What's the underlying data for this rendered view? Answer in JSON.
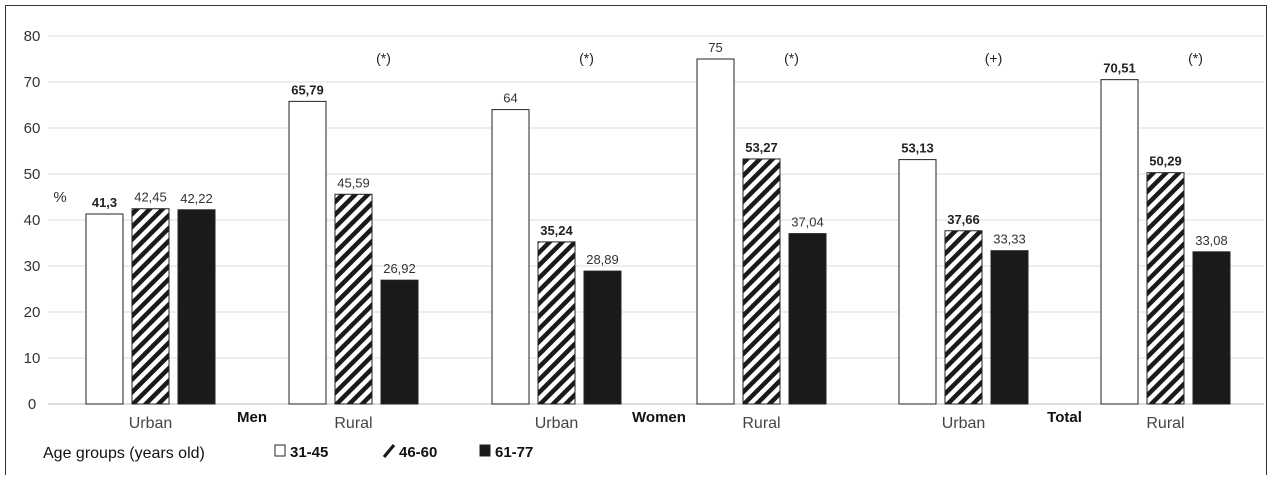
{
  "chart_data": {
    "type": "bar",
    "ylabel": "%",
    "ylim": [
      0,
      80
    ],
    "yticks": [
      "0",
      "10",
      "20",
      "30",
      "40",
      "50",
      "60",
      "70",
      "80"
    ],
    "grid": true,
    "legend": {
      "title": "Age groups (years old)",
      "placement": "bottom",
      "items": [
        {
          "label": "31-45",
          "style": "white"
        },
        {
          "label": "46-60",
          "style": "hatched"
        },
        {
          "label": "61-77",
          "style": "black"
        }
      ]
    },
    "groups": [
      {
        "name": "Men",
        "subgroups": [
          {
            "name": "Urban",
            "significance": "",
            "values": [
              41.3,
              42.45,
              42.22
            ],
            "labels": [
              "41,3",
              "42,45",
              "42,22"
            ],
            "bold": [
              true,
              false,
              false
            ]
          },
          {
            "name": "Rural",
            "significance": "(*)",
            "values": [
              65.79,
              45.59,
              26.92
            ],
            "labels": [
              "65,79",
              "45,59",
              "26,92"
            ],
            "bold": [
              true,
              false,
              false
            ]
          }
        ]
      },
      {
        "name": "Women",
        "subgroups": [
          {
            "name": "Urban",
            "significance": "(*)",
            "values": [
              64,
              35.24,
              28.89
            ],
            "labels": [
              "64",
              "35,24",
              "28,89"
            ],
            "bold": [
              false,
              true,
              false
            ]
          },
          {
            "name": "Rural",
            "significance": "(*)",
            "values": [
              75,
              53.27,
              37.04
            ],
            "labels": [
              "75",
              "53,27",
              "37,04"
            ],
            "bold": [
              false,
              true,
              false
            ]
          }
        ]
      },
      {
        "name": "Total",
        "subgroups": [
          {
            "name": "Urban",
            "significance": "(+)",
            "values": [
              53.13,
              37.66,
              33.33
            ],
            "labels": [
              "53,13",
              "37,66",
              "33,33"
            ],
            "bold": [
              true,
              true,
              false
            ]
          },
          {
            "name": "Rural",
            "significance": "(*)",
            "values": [
              70.51,
              50.29,
              33.08
            ],
            "labels": [
              "70,51",
              "50,29",
              "33,08"
            ],
            "bold": [
              true,
              true,
              false
            ]
          }
        ]
      }
    ]
  }
}
